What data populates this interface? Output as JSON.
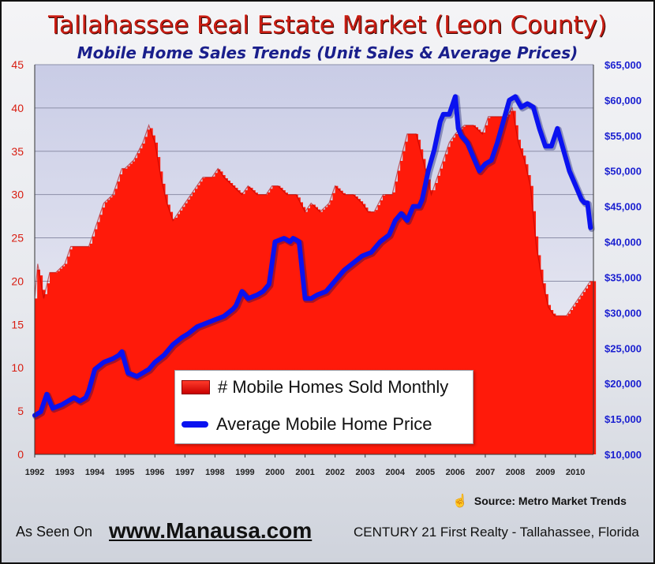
{
  "header": {
    "title": "Tallahassee Real Estate Market (Leon County)",
    "subtitle": "Mobile Home Sales Trends (Unit Sales & Average Prices)"
  },
  "legend": {
    "items": [
      "# Mobile Homes Sold Monthly",
      "Average Mobile Home Price"
    ]
  },
  "source": {
    "text": "Source:  Metro Market Trends",
    "icon": "hand-cursor-icon"
  },
  "footer": {
    "as_seen": "As Seen On",
    "site": "www.Manausa.com",
    "agency": "CENTURY 21 First Realty - Tallahassee, Florida"
  },
  "colors": {
    "bar": "#ff1a0a",
    "line": "#0a12f0",
    "left_axis": "#d81c10",
    "right_axis": "#1a1fd0",
    "title": "#c81e14",
    "subtitle": "#1a1f8c"
  },
  "chart_data": {
    "type": "area",
    "x_labels": [
      "1992",
      "1993",
      "1994",
      "1995",
      "1996",
      "1997",
      "1998",
      "1999",
      "2000",
      "2001",
      "2002",
      "2003",
      "2004",
      "2005",
      "2006",
      "2007",
      "2008",
      "2009",
      "2010"
    ],
    "xlim": [
      1992,
      2010.6
    ],
    "y_left": {
      "min": 0,
      "max": 45,
      "ticks": [
        "0",
        "5",
        "10",
        "15",
        "20",
        "25",
        "30",
        "35",
        "40",
        "45"
      ]
    },
    "y_right": {
      "min": 10000,
      "max": 65000,
      "ticks": [
        "$10,000",
        "$15,000",
        "$20,000",
        "$25,000",
        "$30,000",
        "$35,000",
        "$40,000",
        "$45,000",
        "$50,000",
        "$55,000",
        "$60,000",
        "$65,000"
      ]
    },
    "grid": true,
    "series": [
      {
        "name": "# Mobile Homes Sold Monthly",
        "type": "area",
        "axis": "left",
        "x": [
          1992.0,
          1992.1,
          1992.3,
          1992.5,
          1992.7,
          1993.0,
          1993.2,
          1993.5,
          1993.8,
          1994.0,
          1994.3,
          1994.6,
          1994.9,
          1995.0,
          1995.3,
          1995.6,
          1995.8,
          1996.0,
          1996.2,
          1996.4,
          1996.6,
          1996.8,
          1997.0,
          1997.2,
          1997.4,
          1997.6,
          1997.9,
          1998.1,
          1998.3,
          1998.6,
          1998.9,
          1999.1,
          1999.4,
          1999.7,
          1999.9,
          2000.1,
          2000.4,
          2000.7,
          2001.0,
          2001.2,
          2001.5,
          2001.8,
          2002.0,
          2002.3,
          2002.6,
          2002.9,
          2003.1,
          2003.3,
          2003.6,
          2003.9,
          2004.1,
          2004.4,
          2004.7,
          2005.0,
          2005.2,
          2005.5,
          2005.8,
          2006.0,
          2006.3,
          2006.6,
          2006.9,
          2007.1,
          2007.4,
          2007.7,
          2007.9,
          2008.1,
          2008.3,
          2008.5,
          2008.7,
          2008.9,
          2009.1,
          2009.3,
          2009.5,
          2009.7,
          2009.9,
          2010.1,
          2010.3,
          2010.5
        ],
        "values": [
          18,
          22,
          18,
          21,
          21,
          22,
          24,
          24,
          24,
          26,
          29,
          30,
          33,
          33,
          34,
          36,
          38,
          36,
          32,
          29,
          27,
          28,
          29,
          30,
          31,
          32,
          32,
          33,
          32,
          31,
          30,
          31,
          30,
          30,
          31,
          31,
          30,
          30,
          28,
          29,
          28,
          29,
          31,
          30,
          30,
          29,
          28,
          28,
          30,
          30,
          33,
          37,
          37,
          33,
          30,
          33,
          36,
          37,
          38,
          38,
          37,
          39,
          39,
          39,
          40,
          36,
          34,
          31,
          24,
          20,
          17,
          16,
          16,
          16,
          17,
          18,
          19,
          20
        ]
      },
      {
        "name": "Average Mobile Home Price",
        "type": "line",
        "axis": "right",
        "x": [
          1992.0,
          1992.2,
          1992.4,
          1992.6,
          1992.9,
          1993.1,
          1993.3,
          1993.5,
          1993.7,
          1993.8,
          1994.0,
          1994.3,
          1994.6,
          1994.8,
          1994.9,
          1995.1,
          1995.4,
          1995.6,
          1995.8,
          1996.0,
          1996.3,
          1996.6,
          1996.9,
          1997.1,
          1997.4,
          1997.7,
          1998.0,
          1998.3,
          1998.6,
          1998.7,
          1998.9,
          1999.1,
          1999.4,
          1999.6,
          1999.8,
          2000.0,
          2000.3,
          2000.5,
          2000.6,
          2000.8,
          2001.0,
          2001.2,
          2001.4,
          2001.7,
          2002.0,
          2002.3,
          2002.6,
          2002.9,
          2003.2,
          2003.5,
          2003.8,
          2004.0,
          2004.2,
          2004.4,
          2004.6,
          2004.8,
          2004.9,
          2005.1,
          2005.3,
          2005.5,
          2005.6,
          2005.8,
          2006.0,
          2006.1,
          2006.2,
          2006.4,
          2006.6,
          2006.8,
          2007.0,
          2007.2,
          2007.4,
          2007.6,
          2007.8,
          2008.0,
          2008.2,
          2008.4,
          2008.6,
          2008.8,
          2009.0,
          2009.2,
          2009.4,
          2009.6,
          2009.8,
          2010.0,
          2010.2,
          2010.3,
          2010.4,
          2010.5
        ],
        "values": [
          15500,
          16000,
          18500,
          16500,
          17000,
          17500,
          18000,
          17500,
          18000,
          19000,
          22000,
          23000,
          23500,
          24000,
          24500,
          21500,
          21000,
          21500,
          22000,
          23000,
          24000,
          25500,
          26500,
          27000,
          28000,
          28500,
          29000,
          29500,
          30500,
          31000,
          33000,
          32000,
          32500,
          33000,
          34000,
          40000,
          40500,
          40000,
          40500,
          40000,
          32000,
          32000,
          32500,
          33000,
          34500,
          36000,
          37000,
          38000,
          38500,
          40000,
          41000,
          43000,
          44000,
          43000,
          45000,
          45000,
          46000,
          50000,
          53000,
          57000,
          58000,
          58000,
          60500,
          56000,
          55000,
          54000,
          52000,
          50000,
          51000,
          51500,
          54000,
          57000,
          60000,
          60500,
          59000,
          59500,
          59000,
          56000,
          53500,
          53500,
          56000,
          53000,
          50000,
          48000,
          46000,
          45500,
          45500,
          42000
        ]
      }
    ]
  }
}
